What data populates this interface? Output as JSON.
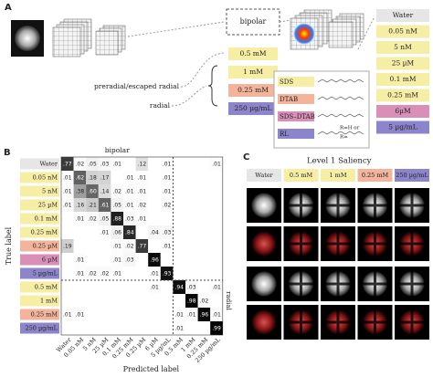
{
  "panel_a": {
    "label": "A",
    "bipolar": "bipolar",
    "inputs": [
      {
        "text": "0.5 mM",
        "color": "#f7eea6"
      },
      {
        "text": "1 mM",
        "color": "#f7eea6"
      },
      {
        "text": "0.25 mM",
        "color": "#f2b49a"
      },
      {
        "text": "250 µg/mL",
        "color": "#8d85cc"
      }
    ],
    "preradial": "preradial/escaped radial",
    "radial": "radial",
    "outputs": [
      {
        "text": "Water",
        "color": "#e6e6e6"
      },
      {
        "text": "0.05 nM",
        "color": "#f7eea6"
      },
      {
        "text": "5 nM",
        "color": "#f7eea6"
      },
      {
        "text": "25 µM",
        "color": "#f7eea6"
      },
      {
        "text": "0.1 mM",
        "color": "#f7eea6"
      },
      {
        "text": "0.25 mM",
        "color": "#f7eea6"
      },
      {
        "text": "6µM",
        "color": "#d98fb8"
      },
      {
        "text": "5 µg/mL",
        "color": "#8d85cc"
      }
    ],
    "legend": [
      {
        "name": "SDS",
        "color": "#f7eea6"
      },
      {
        "name": "DTAB",
        "color": "#f2b49a"
      },
      {
        "name": "SDS–DTAB",
        "color": "#d98fb8"
      },
      {
        "name": "RL",
        "color": "#8d85cc"
      }
    ],
    "r_h": "R=H or",
    "r_eq": "R="
  },
  "panel_b": {
    "label": "B",
    "group_top": "bipolar",
    "group_side": "radial",
    "ylabel": "True label",
    "xlabel": "Predicted label",
    "labels": [
      {
        "text": "Water",
        "color": "#e6e6e6"
      },
      {
        "text": "0.05 nM",
        "color": "#f7eea6"
      },
      {
        "text": "5 nM",
        "color": "#f7eea6"
      },
      {
        "text": "25 µM",
        "color": "#f7eea6"
      },
      {
        "text": "0.1 mM",
        "color": "#f7eea6"
      },
      {
        "text": "0.25 mM",
        "color": "#f7eea6"
      },
      {
        "text": "0.25 µM",
        "color": "#f2b49a"
      },
      {
        "text": "6 µM",
        "color": "#d98fb8"
      },
      {
        "text": "5 µg/mL",
        "color": "#8d85cc"
      },
      {
        "text": "0.5 mM",
        "color": "#f7eea6"
      },
      {
        "text": "1 mM",
        "color": "#f7eea6"
      },
      {
        "text": "0.25 mM",
        "color": "#f2b49a"
      },
      {
        "text": "250 µg/mL",
        "color": "#8d85cc"
      }
    ],
    "cells": [
      [
        ".77",
        ".02",
        ".05",
        ".03",
        ".01",
        null,
        ".12",
        null,
        ".01",
        null,
        null,
        null,
        ".01"
      ],
      [
        ".01",
        ".62",
        ".18",
        ".17",
        null,
        ".01",
        ".01",
        null,
        ".01",
        null,
        null,
        null,
        null
      ],
      [
        ".01",
        ".38",
        ".60",
        ".14",
        ".02",
        ".01",
        ".01",
        null,
        ".01",
        null,
        null,
        null,
        null
      ],
      [
        ".01",
        ".16",
        ".21",
        ".61",
        ".05",
        ".01",
        ".02",
        null,
        ".02",
        null,
        null,
        null,
        null
      ],
      [
        null,
        ".01",
        ".02",
        ".05",
        ".88",
        ".03",
        ".01",
        null,
        null,
        null,
        null,
        null,
        null
      ],
      [
        null,
        null,
        null,
        ".01",
        ".06",
        ".84",
        null,
        ".04",
        ".03",
        null,
        null,
        null,
        null
      ],
      [
        ".19",
        null,
        null,
        null,
        ".01",
        ".02",
        ".77",
        null,
        ".01",
        null,
        null,
        null,
        null
      ],
      [
        null,
        ".01",
        null,
        null,
        ".01",
        ".03",
        null,
        ".96",
        null,
        null,
        null,
        null,
        null
      ],
      [
        null,
        ".01",
        ".02",
        ".02",
        ".01",
        null,
        null,
        ".01",
        ".93",
        null,
        null,
        null,
        null
      ],
      [
        null,
        null,
        null,
        null,
        null,
        null,
        null,
        ".01",
        null,
        ".94",
        ".03",
        null,
        ".01"
      ],
      [
        null,
        null,
        null,
        null,
        null,
        null,
        null,
        null,
        null,
        null,
        ".98",
        ".02",
        null
      ],
      [
        ".01",
        ".01",
        null,
        null,
        null,
        null,
        null,
        null,
        null,
        ".01",
        ".01",
        ".96",
        ".01"
      ],
      [
        null,
        null,
        null,
        null,
        null,
        null,
        null,
        null,
        null,
        ".01",
        null,
        null,
        ".99"
      ]
    ]
  },
  "panel_c": {
    "label": "C",
    "title": "Level 1 Saliency",
    "columns": [
      {
        "text": "Water",
        "color": "#e6e6e6"
      },
      {
        "text": "0.5 mM",
        "color": "#f7eea6"
      },
      {
        "text": "1 mM",
        "color": "#f7eea6"
      },
      {
        "text": "0.25 mM",
        "color": "#f2b49a"
      },
      {
        "text": "250 µg/mL",
        "color": "#8d85cc"
      }
    ]
  }
}
